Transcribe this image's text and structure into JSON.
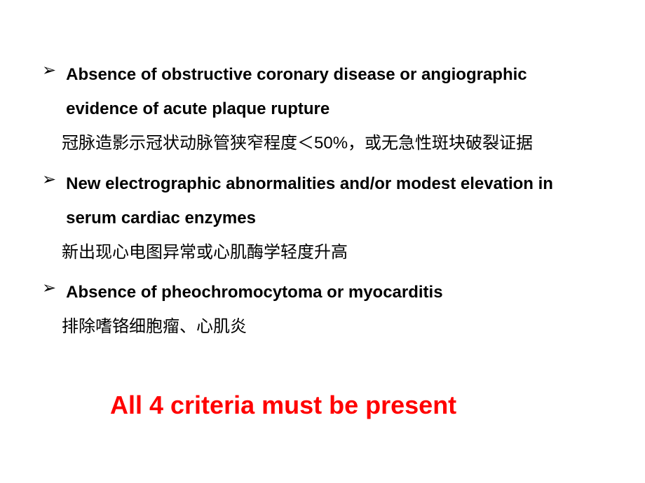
{
  "bullets": [
    {
      "english": "Absence of obstructive coronary disease or angiographic evidence of acute plaque rupture",
      "chinese": "冠脉造影示冠状动脉管狭窄程度＜50%，或无急性斑块破裂证据"
    },
    {
      "english": "New electrographic abnormalities and/or modest elevation in serum cardiac enzymes",
      "chinese": "新出现心电图异常或心肌酶学轻度升高"
    },
    {
      "english": "Absence of pheochromocytoma or myocarditis",
      "chinese": "排除嗜铬细胞瘤、心肌炎"
    }
  ],
  "overlay": "All 4 criteria must be present",
  "marker": "➢",
  "colors": {
    "text": "#000000",
    "overlay": "#ff0000",
    "background": "#ffffff"
  },
  "typography": {
    "english_fontsize": 24,
    "english_weight": "bold",
    "chinese_fontsize": 24,
    "chinese_weight": "normal",
    "overlay_fontsize": 36,
    "overlay_weight": "bold",
    "line_height": 2.05
  }
}
